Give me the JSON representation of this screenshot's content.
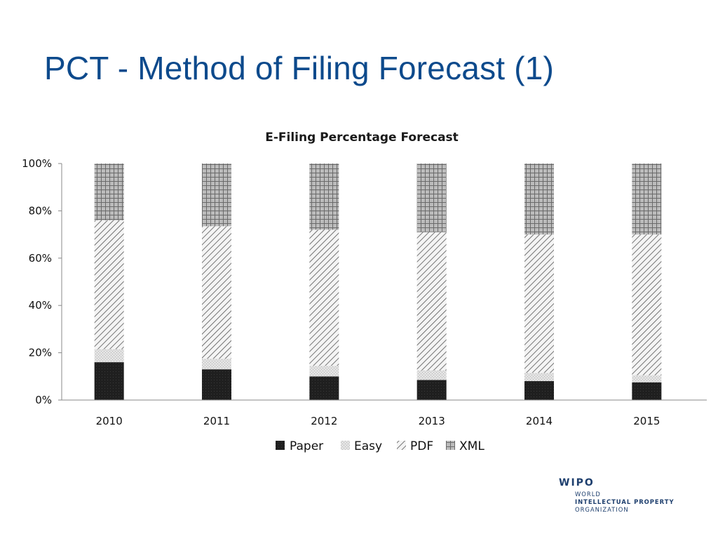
{
  "slide": {
    "title": "PCT - Method of Filing Forecast (1)"
  },
  "colors": {
    "title": "#0d4a8c",
    "paper": "#1f1f1f",
    "easy": "#d9d9d9",
    "pdf": "#bdbdbd",
    "xml": "#c8c8c8"
  },
  "chart_data": {
    "type": "bar",
    "stacked": true,
    "title": "E-Filing Percentage Forecast",
    "categories": [
      "2010",
      "2011",
      "2012",
      "2013",
      "2014",
      "2015"
    ],
    "series": [
      {
        "name": "Paper",
        "values": [
          16,
          13,
          10,
          8.5,
          8,
          7.5
        ]
      },
      {
        "name": "Easy",
        "values": [
          5.5,
          4.5,
          4.5,
          4,
          3.5,
          3
        ]
      },
      {
        "name": "PDF",
        "values": [
          54.5,
          56,
          57.5,
          58.5,
          58.5,
          59.5
        ]
      },
      {
        "name": "XML",
        "values": [
          24,
          26.5,
          28,
          29,
          30,
          30
        ]
      }
    ],
    "ylim": [
      0,
      100
    ],
    "yticks": [
      "0%",
      "20%",
      "40%",
      "60%",
      "80%",
      "100%"
    ],
    "legend_position": "bottom",
    "grid": false
  },
  "logo": {
    "name": "WIPO",
    "lines": [
      "WORLD",
      "INTELLECTUAL PROPERTY",
      "ORGANIZATION"
    ]
  }
}
